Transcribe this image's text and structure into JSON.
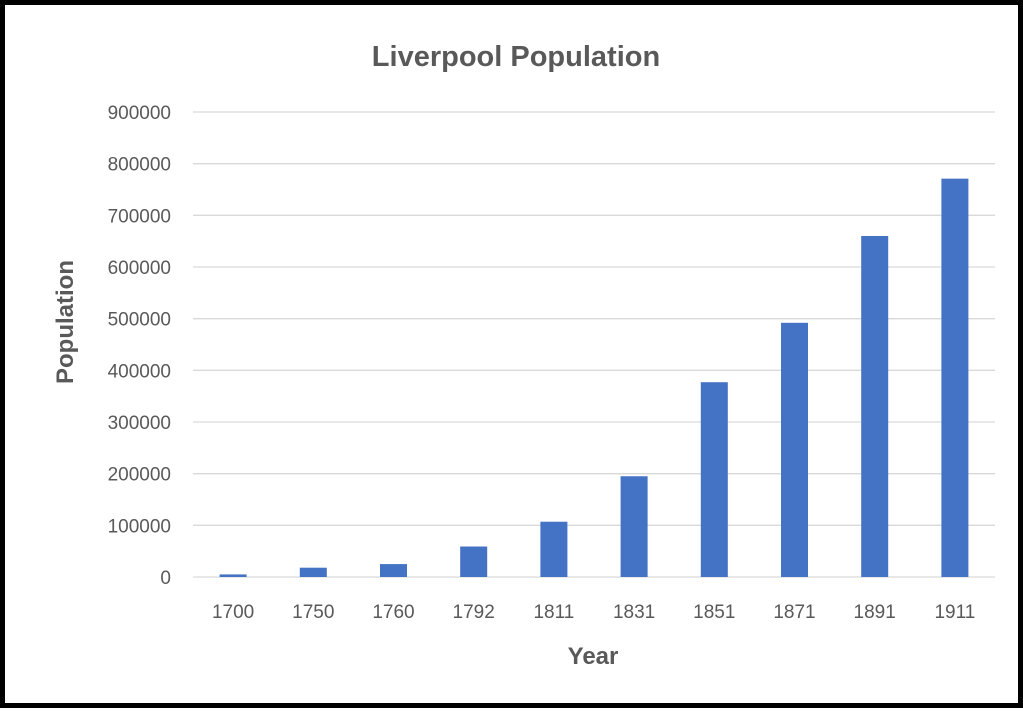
{
  "chart_data": {
    "type": "bar",
    "title": "Liverpool Population",
    "xlabel": "Year",
    "ylabel": "Population",
    "categories": [
      "1700",
      "1750",
      "1760",
      "1792",
      "1811",
      "1831",
      "1851",
      "1871",
      "1891",
      "1911"
    ],
    "values": [
      5000,
      18000,
      25000,
      59000,
      107000,
      195000,
      377000,
      492000,
      660000,
      771000
    ],
    "ylim": [
      0,
      900000
    ],
    "yticks": [
      "0",
      "100000",
      "200000",
      "300000",
      "400000",
      "500000",
      "600000",
      "700000",
      "800000",
      "900000"
    ],
    "grid": true,
    "legend": "none",
    "bar_color": "#4472c4"
  }
}
